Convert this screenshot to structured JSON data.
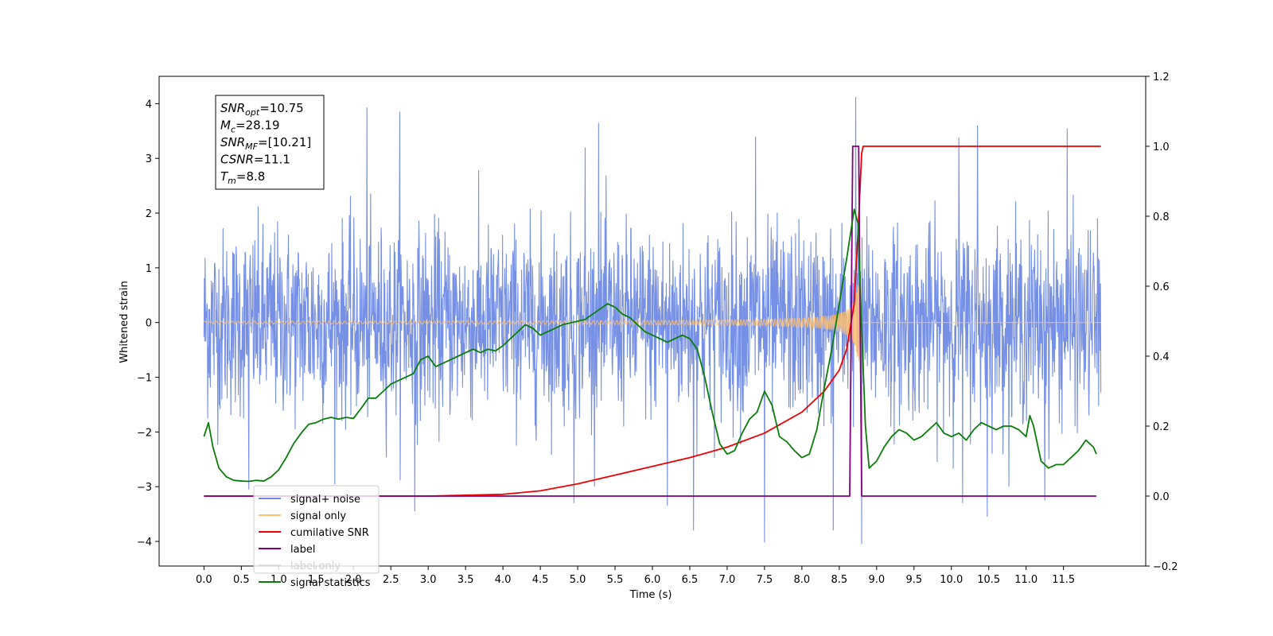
{
  "chart_data": {
    "type": "line",
    "title": "",
    "xlabel": "Time (s)",
    "ylabel": "Whitened strain",
    "y2label": "",
    "xlim": [
      -0.6,
      12.6
    ],
    "ylim": [
      -4.45,
      4.5
    ],
    "y2lim": [
      -0.2,
      1.2
    ],
    "xticks": [
      "0.0",
      "0.5",
      "1.0",
      "1.5",
      "2.0",
      "2.5",
      "3.0",
      "3.5",
      "4.0",
      "4.5",
      "5.0",
      "5.5",
      "6.0",
      "6.5",
      "7.0",
      "7.5",
      "8.0",
      "8.5",
      "9.0",
      "9.5",
      "10.0",
      "10.5",
      "11.0",
      "11.5"
    ],
    "yticks": [
      "4",
      "3",
      "2",
      "1",
      "0",
      "−1",
      "−2",
      "−3",
      "−4"
    ],
    "y2ticks": [
      "1.2",
      "1.0",
      "0.8",
      "0.6",
      "0.4",
      "0.2",
      "0.0",
      "−0.2"
    ],
    "grid": false,
    "legend_position": "bottom-left",
    "annotation": [
      {
        "name": "SNR",
        "sub": "opt",
        "value": "=10.75"
      },
      {
        "name": "M",
        "sub": "c",
        "value": "=28.19"
      },
      {
        "name": "SNR",
        "sub": "MF",
        "value": "=[10.21]"
      },
      {
        "name": "CSNR",
        "sub": "",
        "value": "=11.1"
      },
      {
        "name": "T",
        "sub": "m",
        "value": "=8.8"
      }
    ],
    "series": [
      {
        "name": "signal+ noise",
        "color": "#6a87e3",
        "axis": "left",
        "x_range": [
          0.0,
          12.0
        ],
        "noise_std": 0.85,
        "spikes": [
          [
            2.18,
            3.93
          ],
          [
            2.62,
            3.85
          ],
          [
            5.1,
            3.2
          ],
          [
            5.28,
            3.65
          ],
          [
            6.55,
            3.15
          ],
          [
            7.38,
            3.4
          ],
          [
            8.72,
            4.12
          ],
          [
            10.1,
            3.38
          ],
          [
            10.35,
            3.6
          ],
          [
            11.55,
            3.55
          ],
          [
            0.6,
            -3.05
          ],
          [
            2.82,
            -3.45
          ],
          [
            4.95,
            -3.3
          ],
          [
            6.2,
            -3.35
          ],
          [
            6.55,
            -3.8
          ],
          [
            7.5,
            -4.02
          ],
          [
            8.42,
            -3.8
          ],
          [
            8.8,
            -4.05
          ],
          [
            10.15,
            -3.3
          ],
          [
            10.48,
            -3.55
          ],
          [
            11.25,
            -3.25
          ]
        ]
      },
      {
        "name": "signal only",
        "color": "#ffc070",
        "axis": "left",
        "chirp_amplitude_at_merger": 2.0,
        "merger_time": 8.8
      },
      {
        "name": "cumilative SNR",
        "color": "#ee0000",
        "axis": "right",
        "x": [
          0,
          3,
          4,
          4.5,
          5,
          5.5,
          6,
          6.5,
          7,
          7.5,
          8,
          8.3,
          8.5,
          8.6,
          8.7,
          8.75,
          8.8,
          8.82,
          12
        ],
        "y": [
          0,
          0,
          0.005,
          0.015,
          0.035,
          0.06,
          0.085,
          0.11,
          0.14,
          0.18,
          0.24,
          0.3,
          0.36,
          0.42,
          0.55,
          0.75,
          0.98,
          1.0,
          1.0
        ]
      },
      {
        "name": "label",
        "color": "#800080",
        "axis": "right",
        "x": [
          0,
          8.64,
          8.68,
          8.76,
          8.8,
          11.94
        ],
        "y": [
          0,
          0,
          1.0,
          1.0,
          0,
          0
        ]
      },
      {
        "name": "label only",
        "color": "#d9d9d9",
        "axis": "right",
        "hidden_line": true
      },
      {
        "name": "signal statistics",
        "color": "#0a7d0a",
        "axis": "right",
        "x": [
          0,
          0.06,
          0.12,
          0.2,
          0.3,
          0.4,
          0.5,
          0.6,
          0.7,
          0.8,
          0.9,
          1.0,
          1.1,
          1.2,
          1.3,
          1.4,
          1.5,
          1.6,
          1.7,
          1.8,
          1.9,
          2.0,
          2.1,
          2.2,
          2.3,
          2.4,
          2.5,
          2.6,
          2.7,
          2.8,
          2.9,
          3.0,
          3.1,
          3.2,
          3.3,
          3.4,
          3.5,
          3.6,
          3.7,
          3.8,
          3.9,
          4.0,
          4.1,
          4.2,
          4.3,
          4.4,
          4.5,
          4.6,
          4.7,
          4.8,
          4.9,
          5.0,
          5.1,
          5.2,
          5.3,
          5.4,
          5.5,
          5.6,
          5.7,
          5.8,
          5.9,
          6.0,
          6.1,
          6.2,
          6.3,
          6.4,
          6.5,
          6.6,
          6.7,
          6.8,
          6.9,
          7.0,
          7.1,
          7.2,
          7.3,
          7.4,
          7.5,
          7.6,
          7.7,
          7.8,
          7.9,
          8.0,
          8.1,
          8.2,
          8.3,
          8.4,
          8.5,
          8.6,
          8.7,
          8.75,
          8.8,
          8.85,
          8.9,
          9.0,
          9.1,
          9.2,
          9.3,
          9.4,
          9.5,
          9.6,
          9.7,
          9.8,
          9.9,
          10.0,
          10.1,
          10.2,
          10.3,
          10.4,
          10.5,
          10.6,
          10.7,
          10.8,
          10.9,
          11.0,
          11.05,
          11.1,
          11.2,
          11.3,
          11.4,
          11.5,
          11.6,
          11.7,
          11.8,
          11.9,
          11.94
        ],
        "y": [
          0.17,
          0.21,
          0.14,
          0.08,
          0.055,
          0.045,
          0.043,
          0.042,
          0.045,
          0.043,
          0.055,
          0.075,
          0.11,
          0.15,
          0.18,
          0.205,
          0.21,
          0.22,
          0.225,
          0.22,
          0.225,
          0.222,
          0.25,
          0.28,
          0.28,
          0.3,
          0.32,
          0.33,
          0.34,
          0.35,
          0.39,
          0.4,
          0.37,
          0.38,
          0.39,
          0.4,
          0.41,
          0.42,
          0.41,
          0.42,
          0.415,
          0.43,
          0.45,
          0.47,
          0.49,
          0.48,
          0.46,
          0.47,
          0.48,
          0.49,
          0.495,
          0.5,
          0.505,
          0.52,
          0.535,
          0.55,
          0.54,
          0.52,
          0.51,
          0.49,
          0.47,
          0.46,
          0.45,
          0.44,
          0.45,
          0.46,
          0.45,
          0.42,
          0.34,
          0.24,
          0.15,
          0.12,
          0.13,
          0.18,
          0.22,
          0.24,
          0.3,
          0.26,
          0.17,
          0.155,
          0.13,
          0.11,
          0.12,
          0.19,
          0.31,
          0.42,
          0.55,
          0.68,
          0.82,
          0.78,
          0.48,
          0.2,
          0.08,
          0.1,
          0.14,
          0.17,
          0.19,
          0.18,
          0.16,
          0.17,
          0.19,
          0.21,
          0.18,
          0.17,
          0.18,
          0.16,
          0.19,
          0.21,
          0.2,
          0.19,
          0.2,
          0.2,
          0.19,
          0.17,
          0.23,
          0.2,
          0.1,
          0.08,
          0.09,
          0.09,
          0.11,
          0.13,
          0.16,
          0.14,
          0.12
        ]
      }
    ]
  }
}
